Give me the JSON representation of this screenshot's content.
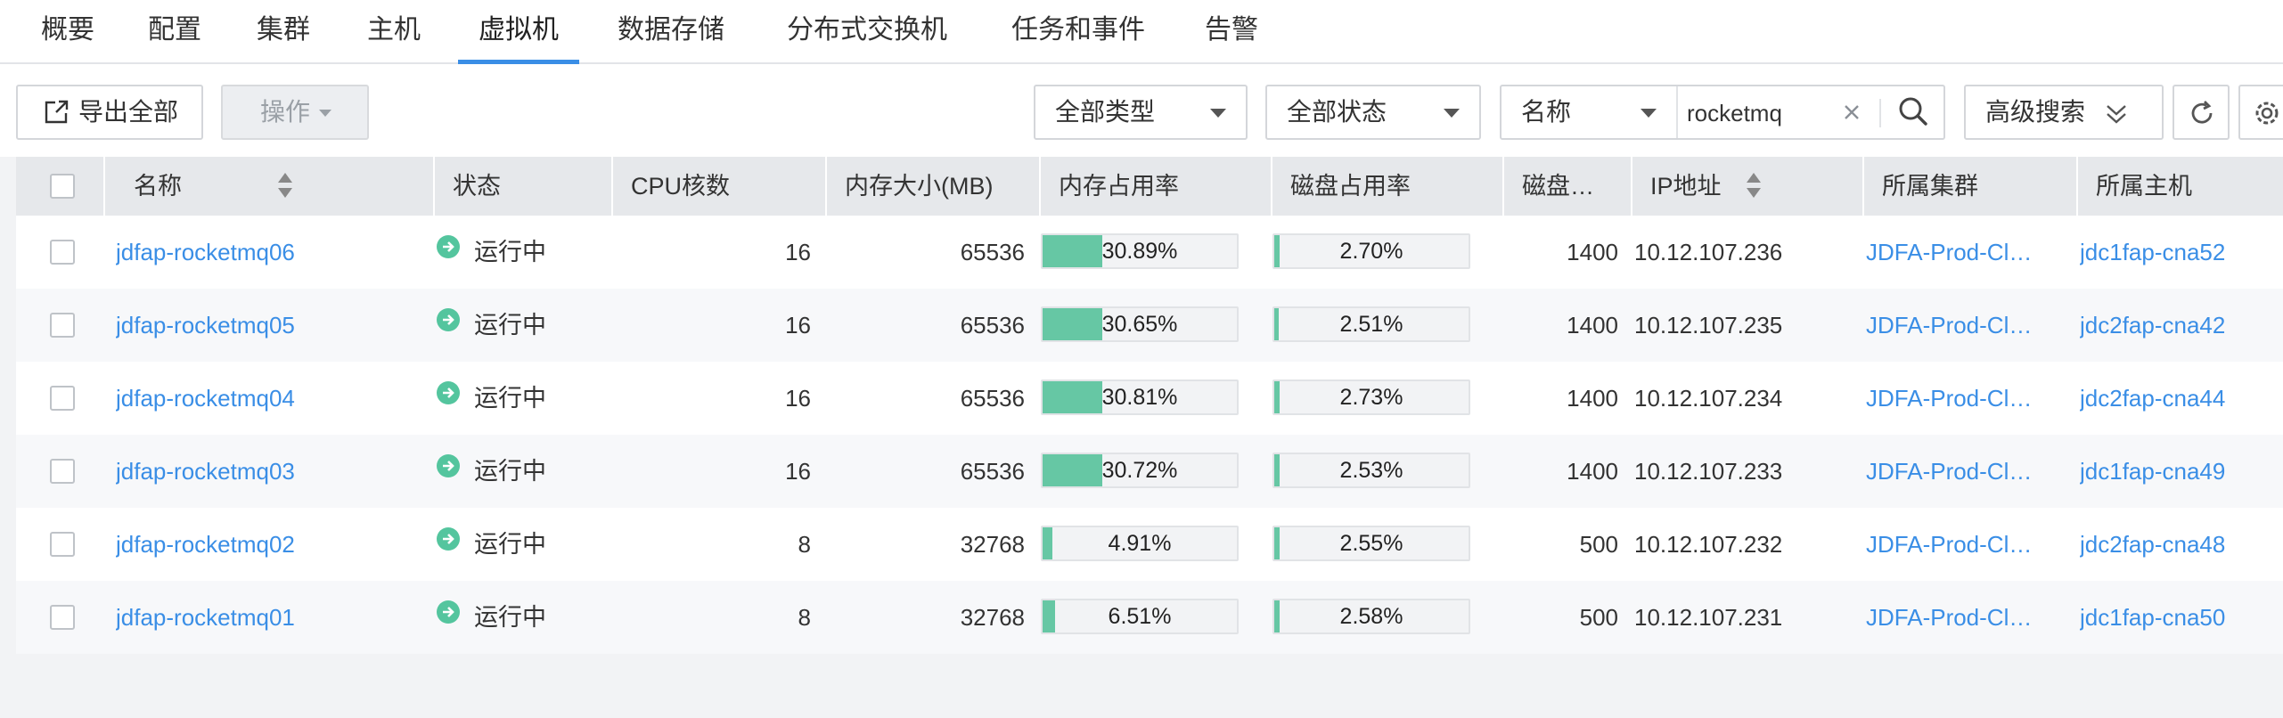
{
  "tabs": [
    {
      "label": "概要",
      "active": false
    },
    {
      "label": "配置",
      "active": false
    },
    {
      "label": "集群",
      "active": false
    },
    {
      "label": "主机",
      "active": false
    },
    {
      "label": "虚拟机",
      "active": true
    },
    {
      "label": "数据存储",
      "active": false
    },
    {
      "label": "分布式交换机",
      "active": false
    },
    {
      "label": "任务和事件",
      "active": false
    },
    {
      "label": "告警",
      "active": false
    }
  ],
  "toolbar": {
    "export_label": "导出全部",
    "action_label": "操作",
    "type_filter": "全部类型",
    "status_filter": "全部状态",
    "search_field": "名称",
    "search_value": "rocketmq",
    "advanced_search_label": "高级搜索"
  },
  "table": {
    "headers": {
      "name": "名称",
      "status": "状态",
      "cpu": "CPU核数",
      "memory": "内存大小(MB)",
      "mem_usage": "内存占用率",
      "disk_usage": "磁盘占用率",
      "disk": "磁盘…",
      "ip": "IP地址",
      "cluster": "所属集群",
      "host": "所属主机"
    },
    "rows": [
      {
        "name": "jdfap-rocketmq06",
        "status": "运行中",
        "cpu": "16",
        "memory": "65536",
        "mem_usage": "30.89%",
        "mem_pct": 30.89,
        "disk_usage": "2.70%",
        "disk_pct": 2.7,
        "disk": "1400",
        "ip": "10.12.107.236",
        "cluster": "JDFA-Prod-Cl…",
        "host": "jdc1fap-cna52"
      },
      {
        "name": "jdfap-rocketmq05",
        "status": "运行中",
        "cpu": "16",
        "memory": "65536",
        "mem_usage": "30.65%",
        "mem_pct": 30.65,
        "disk_usage": "2.51%",
        "disk_pct": 2.51,
        "disk": "1400",
        "ip": "10.12.107.235",
        "cluster": "JDFA-Prod-Cl…",
        "host": "jdc2fap-cna42"
      },
      {
        "name": "jdfap-rocketmq04",
        "status": "运行中",
        "cpu": "16",
        "memory": "65536",
        "mem_usage": "30.81%",
        "mem_pct": 30.81,
        "disk_usage": "2.73%",
        "disk_pct": 2.73,
        "disk": "1400",
        "ip": "10.12.107.234",
        "cluster": "JDFA-Prod-Cl…",
        "host": "jdc2fap-cna44"
      },
      {
        "name": "jdfap-rocketmq03",
        "status": "运行中",
        "cpu": "16",
        "memory": "65536",
        "mem_usage": "30.72%",
        "mem_pct": 30.72,
        "disk_usage": "2.53%",
        "disk_pct": 2.53,
        "disk": "1400",
        "ip": "10.12.107.233",
        "cluster": "JDFA-Prod-Cl…",
        "host": "jdc1fap-cna49"
      },
      {
        "name": "jdfap-rocketmq02",
        "status": "运行中",
        "cpu": "8",
        "memory": "32768",
        "mem_usage": "4.91%",
        "mem_pct": 4.91,
        "disk_usage": "2.55%",
        "disk_pct": 2.55,
        "disk": "500",
        "ip": "10.12.107.232",
        "cluster": "JDFA-Prod-Cl…",
        "host": "jdc2fap-cna48"
      },
      {
        "name": "jdfap-rocketmq01",
        "status": "运行中",
        "cpu": "8",
        "memory": "32768",
        "mem_usage": "6.51%",
        "mem_pct": 6.51,
        "disk_usage": "2.58%",
        "disk_pct": 2.58,
        "disk": "500",
        "ip": "10.12.107.231",
        "cluster": "JDFA-Prod-Cl…",
        "host": "jdc1fap-cna50"
      }
    ]
  },
  "colors": {
    "accent": "#3a8ee6",
    "running": "#54c59e",
    "usage_bar": "#66c7a4"
  }
}
